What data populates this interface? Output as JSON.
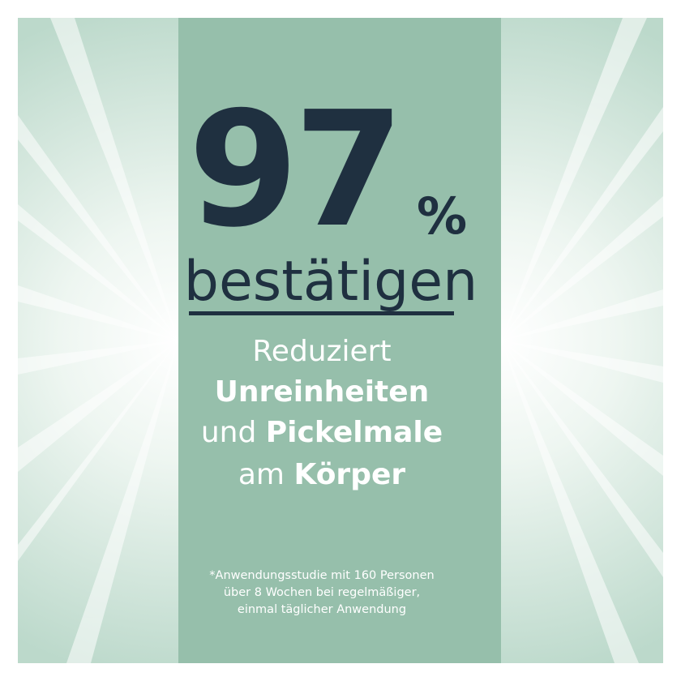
{
  "headline": {
    "number": "97",
    "percent_sign": "%",
    "verb": "bestätigen"
  },
  "claim": {
    "line1": "Reduziert",
    "line2": "Unreinheiten",
    "line3_normal": "und ",
    "line3_bold": "Pickelmale",
    "line4_normal": "am ",
    "line4_bold": "Körper"
  },
  "footnote": {
    "line1": "*Anwendungsstudie mit 160 Personen",
    "line2": "über 8 Wochen bei regelmäßiger,",
    "line3": "einmal täglicher Anwendung"
  },
  "colors": {
    "panel": "#96bfab",
    "text_dark": "#1f3040",
    "text_light": "#ffffff",
    "background_glow": "#d6e8df"
  }
}
